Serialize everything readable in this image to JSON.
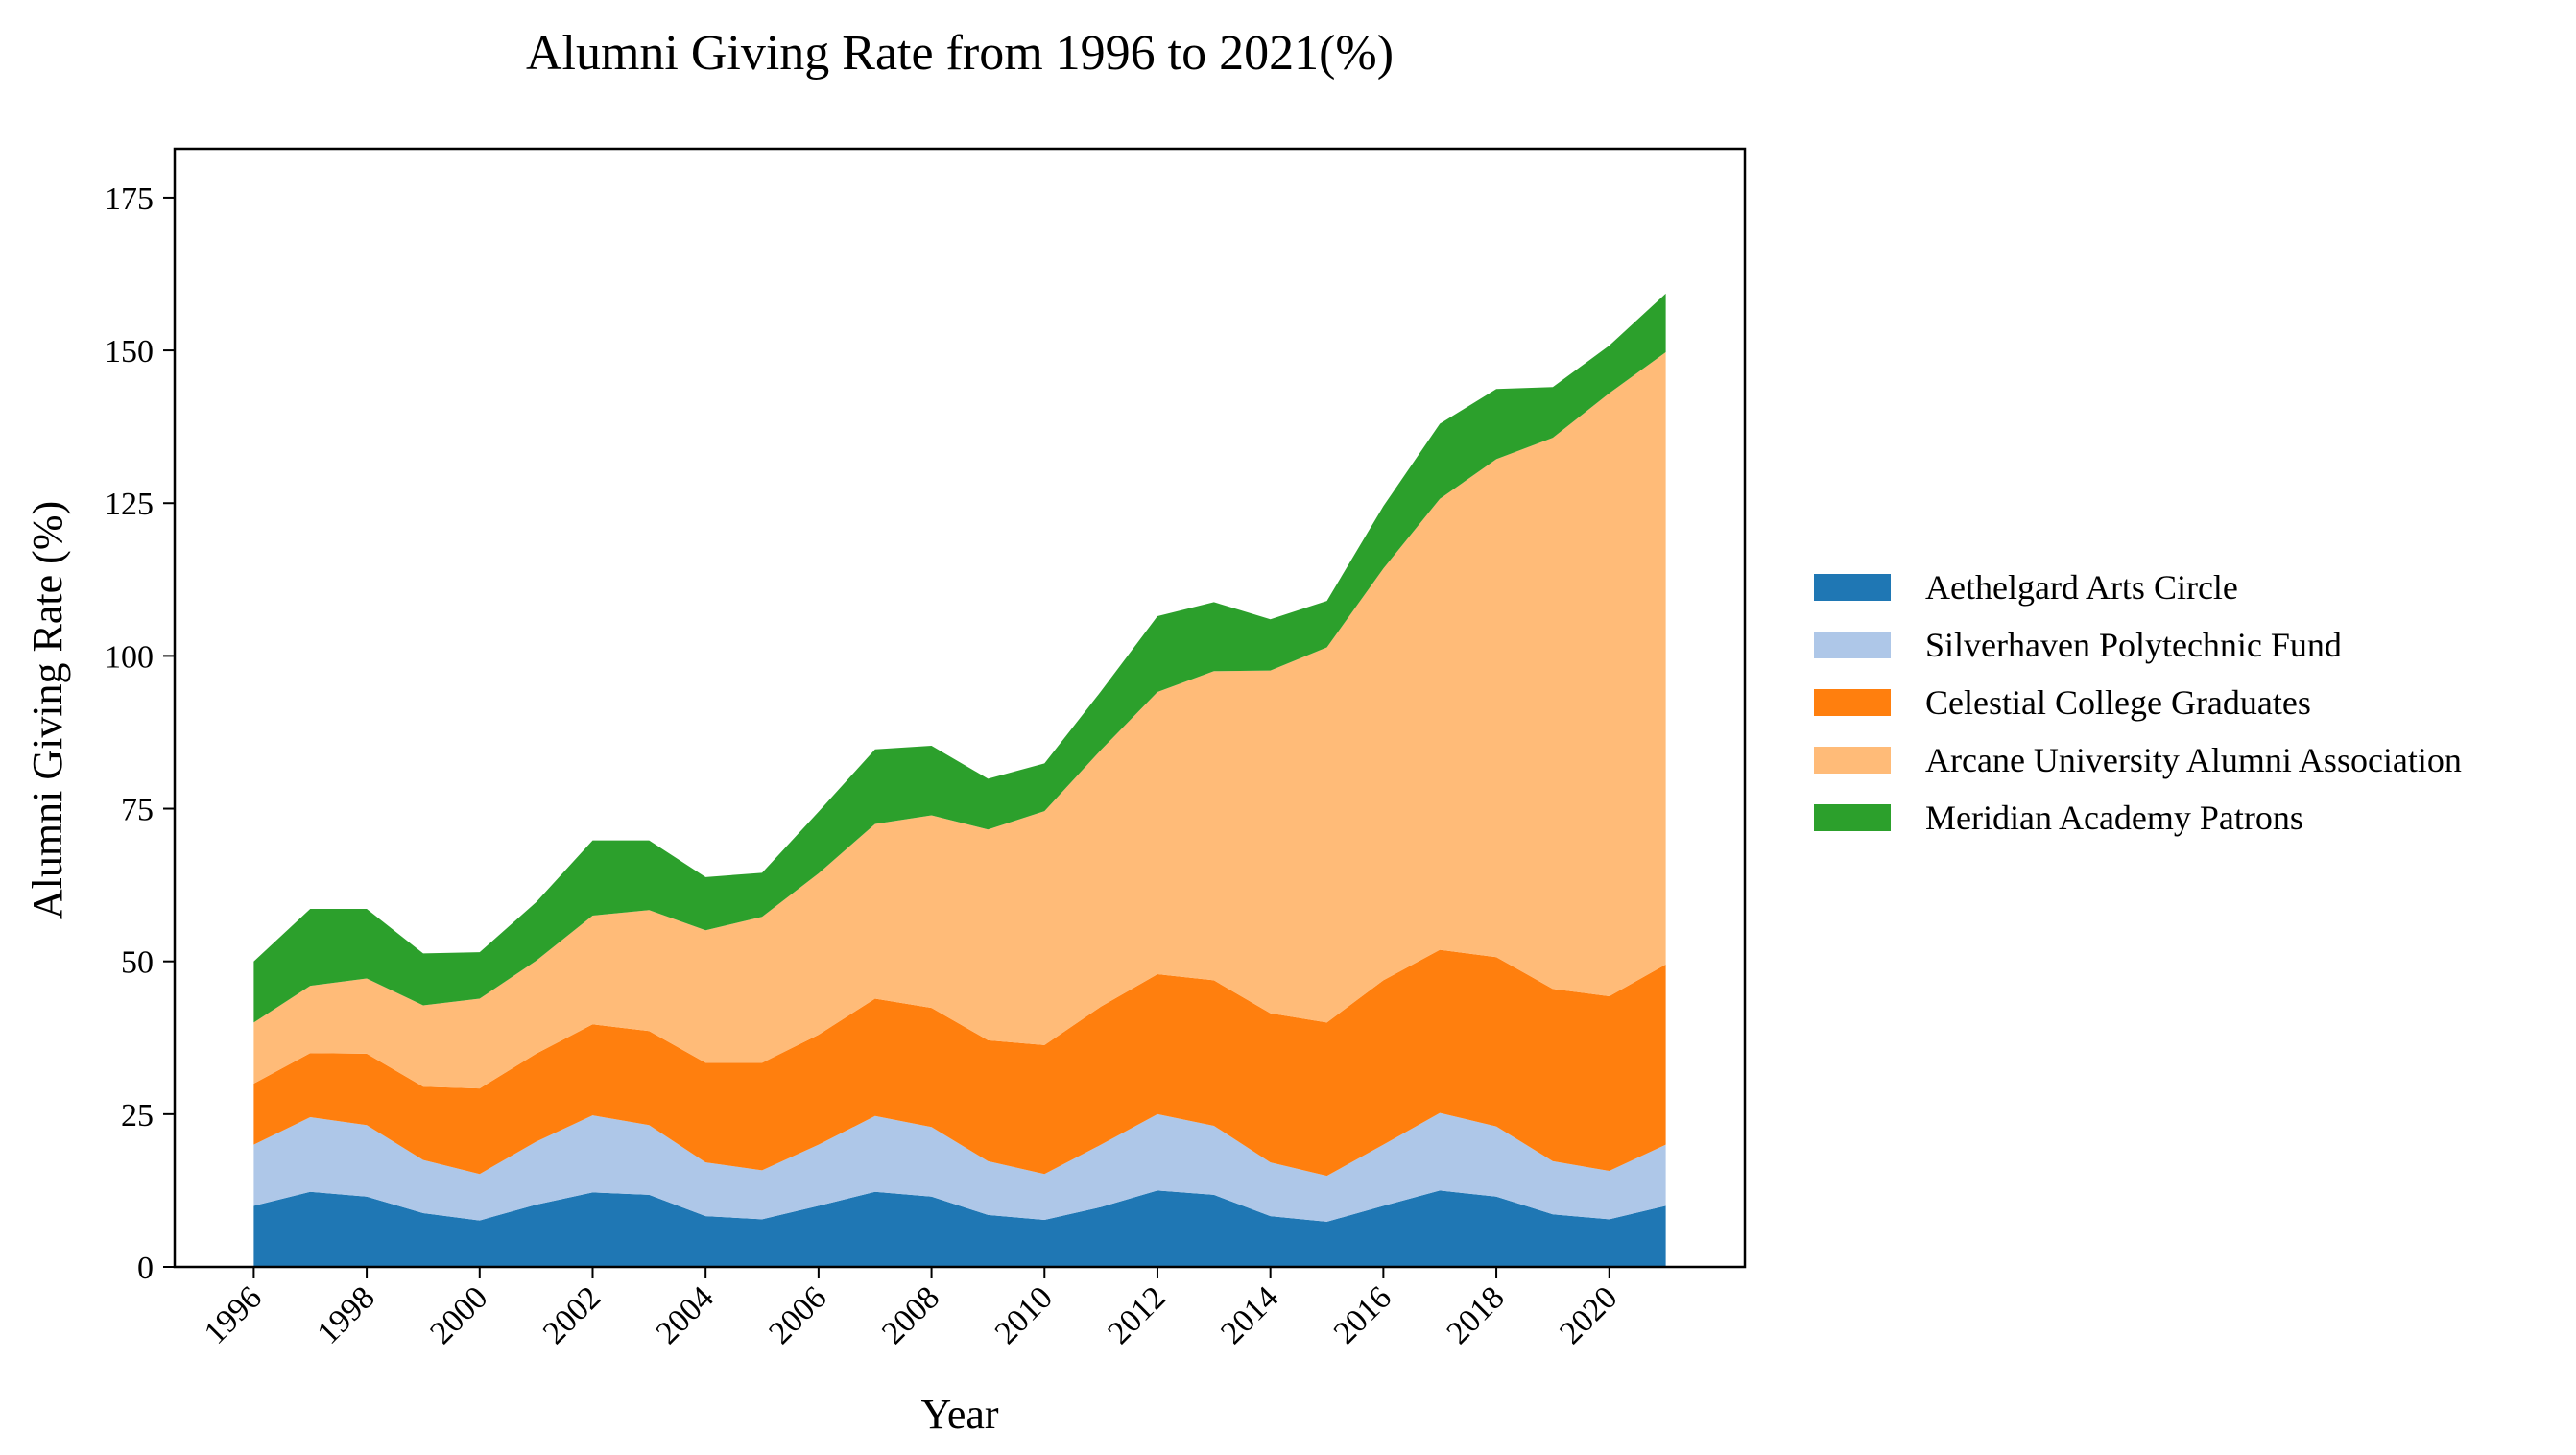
{
  "chart_data": {
    "type": "area",
    "stacked": true,
    "title": "Alumni Giving Rate from 1996 to 2021(%)",
    "xlabel": "Year",
    "ylabel": "Alumni Giving Rate (%)",
    "xlim": [
      1994.6,
      2022.4
    ],
    "ylim": [
      0,
      183
    ],
    "xticks": [
      1996,
      1998,
      2000,
      2002,
      2004,
      2006,
      2008,
      2010,
      2012,
      2014,
      2016,
      2018,
      2020
    ],
    "xtick_labels": [
      "1996",
      "1998",
      "2000",
      "2002",
      "2004",
      "2006",
      "2008",
      "2010",
      "2012",
      "2014",
      "2016",
      "2018",
      "2020"
    ],
    "yticks": [
      0,
      25,
      50,
      75,
      100,
      125,
      150,
      175
    ],
    "ytick_labels": [
      "0",
      "25",
      "50",
      "75",
      "100",
      "125",
      "150",
      "175"
    ],
    "grid": false,
    "legend_position": "right",
    "x": [
      1996,
      1997,
      1998,
      1999,
      2000,
      2001,
      2002,
      2003,
      2004,
      2005,
      2006,
      2007,
      2008,
      2009,
      2010,
      2011,
      2012,
      2013,
      2014,
      2015,
      2016,
      2017,
      2018,
      2019,
      2020,
      2021
    ],
    "series": [
      {
        "name": "Aethelgard Arts Circle",
        "color": "#1f77b4",
        "values": [
          10,
          12.3,
          11.5,
          8.8,
          7.6,
          10.2,
          12.2,
          11.8,
          8.3,
          7.8,
          10,
          12.3,
          11.5,
          8.5,
          7.7,
          9.8,
          12.5,
          11.8,
          8.3,
          7.4,
          10,
          12.5,
          11.5,
          8.6,
          7.8,
          10
        ]
      },
      {
        "name": "Silverhaven Polytechnic Fund",
        "color": "#aec7e8",
        "values": [
          10,
          12.2,
          11.7,
          8.7,
          7.6,
          10.3,
          12.6,
          11.4,
          8.8,
          8,
          10,
          12.4,
          11.4,
          8.8,
          7.5,
          10.2,
          12.5,
          11.3,
          8.8,
          7.5,
          10,
          12.7,
          11.5,
          8.7,
          7.9,
          10
        ]
      },
      {
        "name": "Celestial College Graduates",
        "color": "#ff7f0e",
        "values": [
          10,
          10.5,
          11.7,
          12,
          14,
          14.4,
          14.9,
          15.4,
          16.3,
          17.6,
          18,
          19.2,
          19.5,
          19.8,
          21.1,
          22.6,
          22.9,
          23.8,
          24.4,
          25.1,
          26.9,
          26.7,
          27.7,
          28.2,
          28.6,
          29.5
        ]
      },
      {
        "name": "Arcane University Alumni Association",
        "color": "#ffbb78",
        "values": [
          10,
          11,
          12.3,
          13.3,
          14.7,
          15.2,
          17.8,
          19.8,
          21.7,
          23.9,
          26.4,
          28.6,
          31.5,
          34.5,
          38.3,
          42,
          46.2,
          50.6,
          56.1,
          61.4,
          67.4,
          73.8,
          81.5,
          90.2,
          98.7,
          100.2
        ]
      },
      {
        "name": "Meridian Academy Patrons",
        "color": "#2ca02c",
        "values": [
          10,
          12.6,
          11.4,
          8.5,
          7.6,
          9.6,
          12.3,
          11.4,
          8.7,
          7.2,
          10.1,
          12.2,
          11.4,
          8.3,
          7.8,
          9.6,
          12.4,
          11.3,
          8.4,
          7.6,
          10.2,
          12.3,
          11.5,
          8.3,
          7.8,
          9.6
        ]
      }
    ]
  }
}
